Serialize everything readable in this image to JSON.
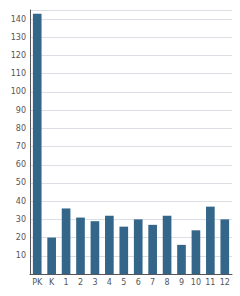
{
  "chart_data": {
    "type": "bar",
    "categories": [
      "PK",
      "K",
      "1",
      "2",
      "3",
      "4",
      "5",
      "6",
      "7",
      "8",
      "9",
      "10",
      "11",
      "12"
    ],
    "values": [
      143,
      20,
      36,
      31,
      29,
      32,
      26,
      30,
      27,
      32,
      16,
      24,
      37,
      30
    ],
    "color": "#336688",
    "ylim": [
      0,
      145
    ],
    "yticks": [
      10,
      20,
      30,
      40,
      50,
      60,
      70,
      80,
      90,
      100,
      110,
      120,
      130,
      140
    ],
    "grid": true
  }
}
